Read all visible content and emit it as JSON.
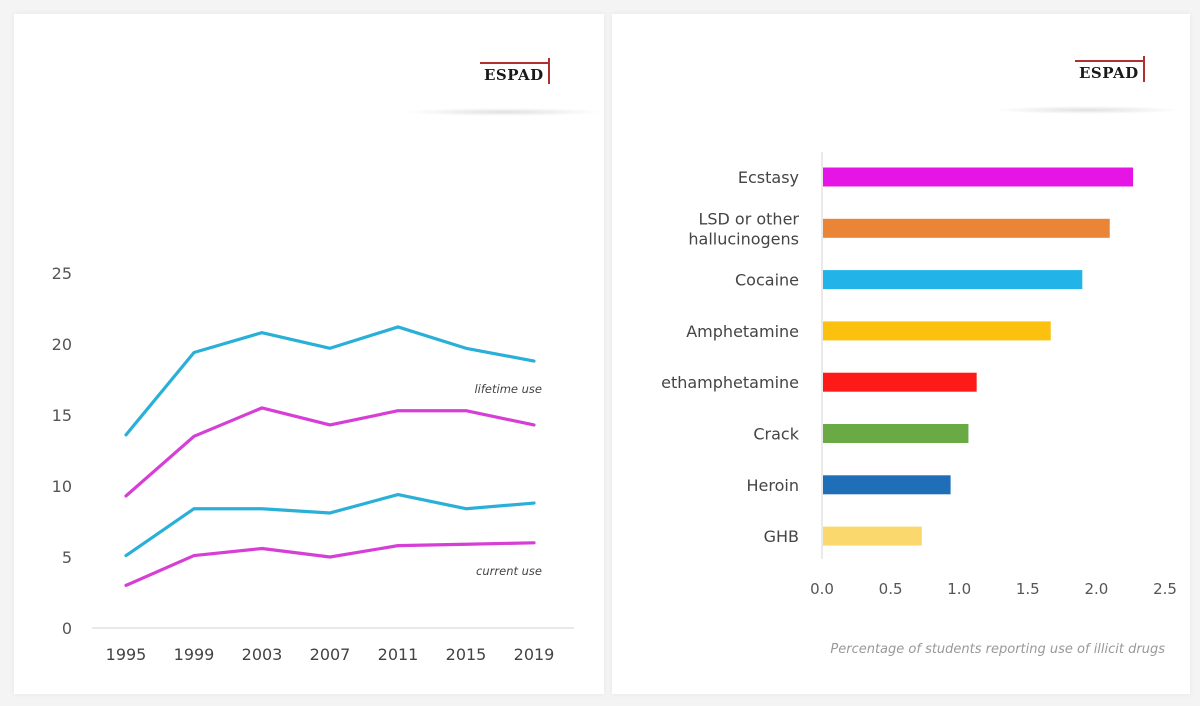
{
  "logo_text": "ESPAD",
  "chart_data": [
    {
      "type": "line",
      "title": "",
      "xlabel": "",
      "ylabel": "",
      "x": [
        "1995",
        "1999",
        "2003",
        "2007",
        "2011",
        "2015",
        "2019"
      ],
      "ylim": [
        0,
        25
      ],
      "yticks": [
        "0",
        "5",
        "10",
        "15",
        "20",
        "25"
      ],
      "grid": false,
      "series": [
        {
          "values": [
            13.6,
            19.4,
            20.8,
            19.7,
            21.2,
            19.7,
            18.8
          ],
          "color": "#2ab0d8"
        },
        {
          "values": [
            9.3,
            13.5,
            15.5,
            14.3,
            15.3,
            15.3,
            14.3
          ],
          "color": "#d63fd6"
        },
        {
          "values": [
            5.1,
            8.4,
            8.4,
            8.1,
            9.4,
            8.4,
            8.8
          ],
          "color": "#2ab0d8"
        },
        {
          "values": [
            3.0,
            5.1,
            5.6,
            5.0,
            5.8,
            5.9,
            6.0
          ],
          "color": "#d63fd6"
        }
      ],
      "annotations": [
        "lifetime use",
        "current use"
      ]
    },
    {
      "type": "bar",
      "orientation": "horizontal",
      "title": "",
      "xlabel": "Percentage of students reporting use of illicit drugs",
      "ylabel": "",
      "xlim": [
        0,
        2.5
      ],
      "xticks": [
        "0.0",
        "0.5",
        "1.0",
        "1.5",
        "2.0",
        "2.5"
      ],
      "grid": false,
      "categories": [
        [
          "Ecstasy"
        ],
        [
          "LSD or other",
          "hallucinogens"
        ],
        [
          "Cocaine"
        ],
        [
          "Amphetamine"
        ],
        [
          "ethamphetamine"
        ],
        [
          "Crack"
        ],
        [
          "Heroin"
        ],
        [
          "GHB"
        ]
      ],
      "values": [
        2.26,
        2.09,
        1.89,
        1.66,
        1.12,
        1.06,
        0.93,
        0.72
      ],
      "colors": [
        "#e516e5",
        "#ea8436",
        "#22b4e8",
        "#fcc10f",
        "#ff1a1a",
        "#6aaa45",
        "#1e6eb8",
        "#fbd86e"
      ]
    }
  ]
}
